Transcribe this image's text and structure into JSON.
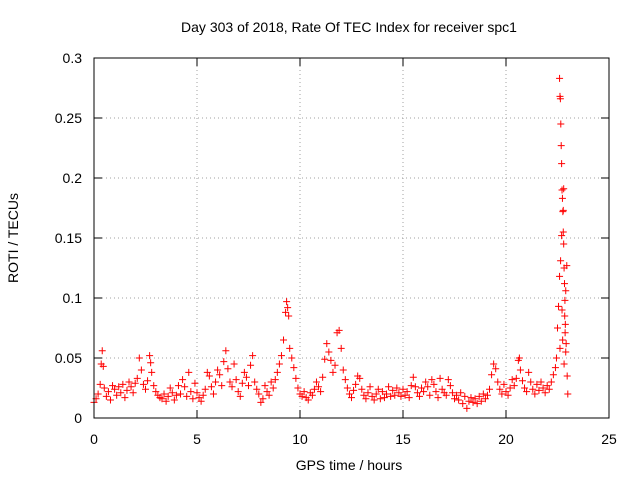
{
  "chart_data": {
    "type": "scatter",
    "title": "Day 303 of 2018, Rate Of TEC Index for receiver spc1",
    "xlabel": "GPS time / hours",
    "ylabel": "ROTI / TECUs",
    "xlim": [
      0,
      25
    ],
    "ylim": [
      0,
      0.3
    ],
    "x_ticks": [
      0,
      5,
      10,
      15,
      20,
      25
    ],
    "y_ticks": [
      0,
      0.05,
      0.1,
      0.15,
      0.2,
      0.25,
      0.3
    ],
    "x_tick_labels": [
      "0",
      "5",
      "10",
      "15",
      "20",
      "25"
    ],
    "y_tick_labels": [
      "0",
      "0.05",
      "0.1",
      "0.15",
      "0.2",
      "0.25",
      "0.3"
    ],
    "grid": true,
    "legend": "none",
    "marker": "+",
    "color": "#ff0000",
    "series": [
      {
        "values_xy": [
          [
            0.0,
            0.013
          ],
          [
            0.1,
            0.016
          ],
          [
            0.2,
            0.02
          ],
          [
            0.3,
            0.028
          ],
          [
            0.35,
            0.045
          ],
          [
            0.4,
            0.056
          ],
          [
            0.45,
            0.043
          ],
          [
            0.5,
            0.025
          ],
          [
            0.6,
            0.018
          ],
          [
            0.7,
            0.022
          ],
          [
            0.8,
            0.015
          ],
          [
            0.9,
            0.027
          ],
          [
            1.0,
            0.024
          ],
          [
            1.1,
            0.019
          ],
          [
            1.2,
            0.026
          ],
          [
            1.3,
            0.021
          ],
          [
            1.4,
            0.028
          ],
          [
            1.5,
            0.017
          ],
          [
            1.6,
            0.023
          ],
          [
            1.7,
            0.03
          ],
          [
            1.8,
            0.026
          ],
          [
            1.9,
            0.021
          ],
          [
            2.0,
            0.029
          ],
          [
            2.1,
            0.033
          ],
          [
            2.2,
            0.05
          ],
          [
            2.3,
            0.04
          ],
          [
            2.4,
            0.028
          ],
          [
            2.5,
            0.024
          ],
          [
            2.6,
            0.031
          ],
          [
            2.7,
            0.052
          ],
          [
            2.75,
            0.046
          ],
          [
            2.8,
            0.038
          ],
          [
            2.9,
            0.027
          ],
          [
            3.0,
            0.022
          ],
          [
            3.1,
            0.019
          ],
          [
            3.2,
            0.017
          ],
          [
            3.3,
            0.016
          ],
          [
            3.4,
            0.02
          ],
          [
            3.5,
            0.014
          ],
          [
            3.6,
            0.018
          ],
          [
            3.7,
            0.025
          ],
          [
            3.8,
            0.021
          ],
          [
            3.9,
            0.015
          ],
          [
            4.0,
            0.019
          ],
          [
            4.1,
            0.027
          ],
          [
            4.2,
            0.02
          ],
          [
            4.3,
            0.032
          ],
          [
            4.4,
            0.026
          ],
          [
            4.5,
            0.018
          ],
          [
            4.6,
            0.038
          ],
          [
            4.7,
            0.022
          ],
          [
            4.8,
            0.016
          ],
          [
            4.9,
            0.029
          ],
          [
            5.0,
            0.021
          ],
          [
            5.1,
            0.017
          ],
          [
            5.2,
            0.014
          ],
          [
            5.3,
            0.019
          ],
          [
            5.4,
            0.024
          ],
          [
            5.5,
            0.038
          ],
          [
            5.6,
            0.035
          ],
          [
            5.7,
            0.026
          ],
          [
            5.8,
            0.02
          ],
          [
            5.9,
            0.03
          ],
          [
            6.0,
            0.04
          ],
          [
            6.1,
            0.036
          ],
          [
            6.2,
            0.027
          ],
          [
            6.3,
            0.047
          ],
          [
            6.4,
            0.056
          ],
          [
            6.5,
            0.041
          ],
          [
            6.6,
            0.03
          ],
          [
            6.7,
            0.026
          ],
          [
            6.8,
            0.045
          ],
          [
            6.9,
            0.032
          ],
          [
            7.0,
            0.022
          ],
          [
            7.1,
            0.018
          ],
          [
            7.2,
            0.029
          ],
          [
            7.3,
            0.038
          ],
          [
            7.4,
            0.034
          ],
          [
            7.5,
            0.027
          ],
          [
            7.6,
            0.044
          ],
          [
            7.7,
            0.052
          ],
          [
            7.8,
            0.03
          ],
          [
            7.9,
            0.024
          ],
          [
            8.0,
            0.02
          ],
          [
            8.1,
            0.013
          ],
          [
            8.2,
            0.016
          ],
          [
            8.3,
            0.027
          ],
          [
            8.4,
            0.022
          ],
          [
            8.5,
            0.019
          ],
          [
            8.6,
            0.03
          ],
          [
            8.7,
            0.025
          ],
          [
            8.8,
            0.032
          ],
          [
            8.9,
            0.038
          ],
          [
            9.0,
            0.045
          ],
          [
            9.1,
            0.052
          ],
          [
            9.2,
            0.065
          ],
          [
            9.3,
            0.088
          ],
          [
            9.35,
            0.097
          ],
          [
            9.4,
            0.092
          ],
          [
            9.45,
            0.085
          ],
          [
            9.5,
            0.058
          ],
          [
            9.6,
            0.05
          ],
          [
            9.7,
            0.042
          ],
          [
            9.8,
            0.033
          ],
          [
            9.9,
            0.025
          ],
          [
            10.0,
            0.02
          ],
          [
            10.1,
            0.018
          ],
          [
            10.2,
            0.022
          ],
          [
            10.3,
            0.017
          ],
          [
            10.4,
            0.015
          ],
          [
            10.5,
            0.021
          ],
          [
            10.6,
            0.019
          ],
          [
            10.7,
            0.024
          ],
          [
            10.8,
            0.03
          ],
          [
            10.9,
            0.026
          ],
          [
            11.0,
            0.022
          ],
          [
            11.1,
            0.034
          ],
          [
            11.2,
            0.049
          ],
          [
            11.3,
            0.062
          ],
          [
            11.4,
            0.055
          ],
          [
            11.5,
            0.048
          ],
          [
            11.6,
            0.038
          ],
          [
            11.7,
            0.044
          ],
          [
            11.8,
            0.071
          ],
          [
            11.9,
            0.073
          ],
          [
            12.0,
            0.058
          ],
          [
            12.1,
            0.04
          ],
          [
            12.2,
            0.032
          ],
          [
            12.3,
            0.025
          ],
          [
            12.4,
            0.02
          ],
          [
            12.5,
            0.017
          ],
          [
            12.6,
            0.023
          ],
          [
            12.7,
            0.028
          ],
          [
            12.8,
            0.035
          ],
          [
            12.9,
            0.033
          ],
          [
            13.0,
            0.024
          ],
          [
            13.1,
            0.019
          ],
          [
            13.2,
            0.016
          ],
          [
            13.3,
            0.021
          ],
          [
            13.4,
            0.026
          ],
          [
            13.5,
            0.018
          ],
          [
            13.6,
            0.015
          ],
          [
            13.7,
            0.02
          ],
          [
            13.8,
            0.024
          ],
          [
            13.9,
            0.016
          ],
          [
            14.0,
            0.022
          ],
          [
            14.1,
            0.017
          ],
          [
            14.2,
            0.02
          ],
          [
            14.3,
            0.026
          ],
          [
            14.4,
            0.018
          ],
          [
            14.5,
            0.023
          ],
          [
            14.6,
            0.019
          ],
          [
            14.7,
            0.025
          ],
          [
            14.8,
            0.021
          ],
          [
            14.9,
            0.018
          ],
          [
            15.0,
            0.024
          ],
          [
            15.1,
            0.019
          ],
          [
            15.2,
            0.022
          ],
          [
            15.3,
            0.017
          ],
          [
            15.4,
            0.027
          ],
          [
            15.5,
            0.034
          ],
          [
            15.6,
            0.026
          ],
          [
            15.7,
            0.021
          ],
          [
            15.8,
            0.018
          ],
          [
            15.9,
            0.025
          ],
          [
            16.0,
            0.022
          ],
          [
            16.1,
            0.03
          ],
          [
            16.2,
            0.026
          ],
          [
            16.3,
            0.019
          ],
          [
            16.4,
            0.032
          ],
          [
            16.5,
            0.028
          ],
          [
            16.6,
            0.022
          ],
          [
            16.7,
            0.017
          ],
          [
            16.8,
            0.033
          ],
          [
            16.9,
            0.024
          ],
          [
            17.0,
            0.021
          ],
          [
            17.1,
            0.019
          ],
          [
            17.2,
            0.032
          ],
          [
            17.3,
            0.027
          ],
          [
            17.4,
            0.021
          ],
          [
            17.5,
            0.016
          ],
          [
            17.6,
            0.019
          ],
          [
            17.7,
            0.015
          ],
          [
            17.8,
            0.021
          ],
          [
            17.9,
            0.012
          ],
          [
            18.0,
            0.018
          ],
          [
            18.1,
            0.008
          ],
          [
            18.2,
            0.014
          ],
          [
            18.3,
            0.017
          ],
          [
            18.4,
            0.013
          ],
          [
            18.5,
            0.016
          ],
          [
            18.6,
            0.012
          ],
          [
            18.7,
            0.018
          ],
          [
            18.8,
            0.014
          ],
          [
            18.9,
            0.02
          ],
          [
            19.0,
            0.016
          ],
          [
            19.1,
            0.019
          ],
          [
            19.2,
            0.024
          ],
          [
            19.3,
            0.036
          ],
          [
            19.4,
            0.045
          ],
          [
            19.5,
            0.041
          ],
          [
            19.6,
            0.03
          ],
          [
            19.7,
            0.024
          ],
          [
            19.8,
            0.02
          ],
          [
            19.9,
            0.028
          ],
          [
            20.0,
            0.022
          ],
          [
            20.1,
            0.019
          ],
          [
            20.2,
            0.025
          ],
          [
            20.3,
            0.032
          ],
          [
            20.4,
            0.027
          ],
          [
            20.5,
            0.033
          ],
          [
            20.6,
            0.048
          ],
          [
            20.65,
            0.05
          ],
          [
            20.7,
            0.04
          ],
          [
            20.8,
            0.031
          ],
          [
            20.9,
            0.025
          ],
          [
            21.0,
            0.022
          ],
          [
            21.1,
            0.038
          ],
          [
            21.2,
            0.03
          ],
          [
            21.3,
            0.024
          ],
          [
            21.4,
            0.02
          ],
          [
            21.5,
            0.028
          ],
          [
            21.6,
            0.023
          ],
          [
            21.7,
            0.03
          ],
          [
            21.8,
            0.025
          ],
          [
            21.9,
            0.021
          ],
          [
            22.0,
            0.027
          ],
          [
            22.1,
            0.024
          ],
          [
            22.2,
            0.03
          ],
          [
            22.3,
            0.036
          ],
          [
            22.4,
            0.042
          ],
          [
            22.45,
            0.05
          ],
          [
            22.5,
            0.075
          ],
          [
            22.55,
            0.093
          ],
          [
            22.6,
            0.118
          ],
          [
            22.62,
            0.058
          ],
          [
            22.65,
            0.131
          ],
          [
            22.7,
            0.152
          ],
          [
            22.72,
            0.09
          ],
          [
            22.75,
            0.065
          ],
          [
            22.78,
            0.173
          ],
          [
            22.8,
            0.191
          ],
          [
            22.82,
            0.045
          ],
          [
            22.85,
            0.085
          ],
          [
            22.87,
            0.071
          ],
          [
            22.9,
            0.106
          ],
          [
            22.92,
            0.062
          ],
          [
            22.95,
            0.127
          ],
          [
            22.97,
            0.035
          ],
          [
            23.0,
            0.02
          ],
          [
            22.6,
            0.283
          ],
          [
            22.62,
            0.268
          ],
          [
            22.64,
            0.266
          ],
          [
            22.66,
            0.245
          ],
          [
            22.68,
            0.227
          ],
          [
            22.7,
            0.212
          ],
          [
            22.72,
            0.19
          ],
          [
            22.74,
            0.183
          ],
          [
            22.76,
            0.172
          ],
          [
            22.78,
            0.155
          ],
          [
            22.8,
            0.145
          ],
          [
            22.82,
            0.125
          ],
          [
            22.84,
            0.112
          ],
          [
            22.86,
            0.098
          ],
          [
            22.88,
            0.078
          ],
          [
            22.9,
            0.055
          ]
        ]
      }
    ]
  }
}
